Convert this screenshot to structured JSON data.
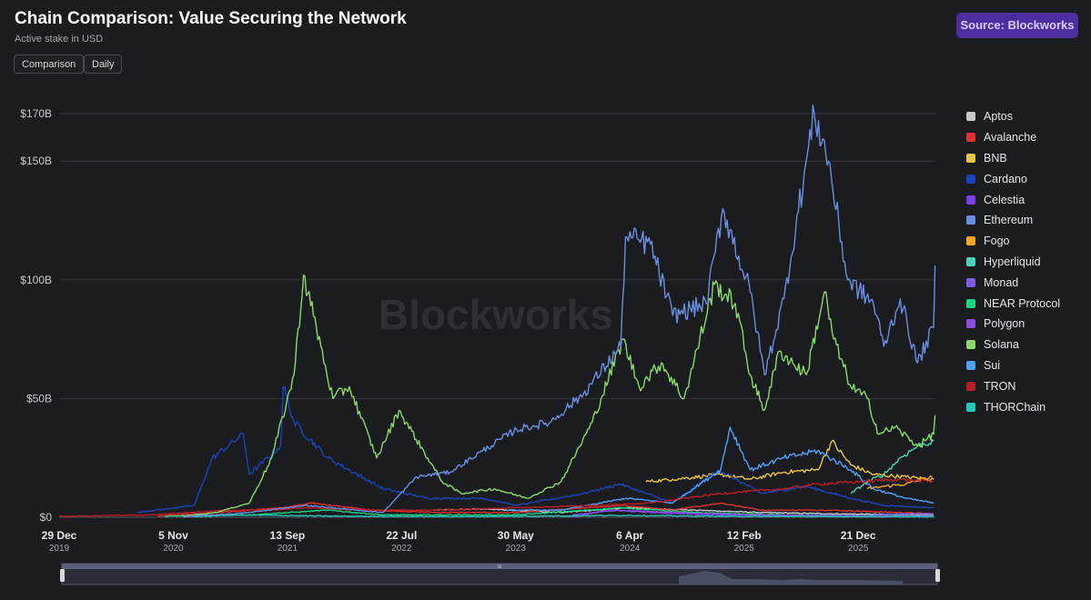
{
  "header": {
    "title": "Chain Comparison: Value Securing the Network",
    "subtitle": "Active stake in USD",
    "source_label": "Source: Blockworks",
    "accent": "#4c2f9e"
  },
  "controls": {
    "comparison_label": "Comparison",
    "daily_label": "Daily"
  },
  "watermark": "Blockworks",
  "chart_data": {
    "type": "line",
    "y_unit": "USD",
    "ylim": [
      0,
      170
    ],
    "y_ticks": [
      {
        "value": 0,
        "label": "$0"
      },
      {
        "value": 50,
        "label": "$50B"
      },
      {
        "value": 100,
        "label": "$100B"
      },
      {
        "value": 150,
        "label": "$150B"
      },
      {
        "value": 170,
        "label": "$170B"
      }
    ],
    "xlim": [
      "2019-12-29",
      "2026-07-20"
    ],
    "x_ticks": [
      {
        "date": "2019-12-29",
        "label": "29 Dec",
        "year": "2019"
      },
      {
        "date": "2020-11-05",
        "label": "5 Nov",
        "year": "2020"
      },
      {
        "date": "2021-09-13",
        "label": "13 Sep",
        "year": "2021"
      },
      {
        "date": "2022-07-22",
        "label": "22 Jul",
        "year": "2022"
      },
      {
        "date": "2023-05-30",
        "label": "30 May",
        "year": "2023"
      },
      {
        "date": "2024-04-06",
        "label": "6 Apr",
        "year": "2024"
      },
      {
        "date": "2025-02-12",
        "label": "12 Feb",
        "year": "2025"
      },
      {
        "date": "2025-12-21",
        "label": "21 Dec",
        "year": "2025"
      }
    ],
    "grid": true,
    "legend_position": "right",
    "series": [
      {
        "name": "Aptos",
        "color": "#c8c8cc",
        "points": [
          [
            "2022-10-18",
            3
          ],
          [
            "2023-03-01",
            3.5
          ],
          [
            "2023-10-01",
            2
          ],
          [
            "2024-04-01",
            4
          ],
          [
            "2024-10-01",
            3
          ],
          [
            "2025-04-01",
            2
          ],
          [
            "2025-10-01",
            1.5
          ],
          [
            "2026-07-15",
            1
          ]
        ]
      },
      {
        "name": "Avalanche",
        "color": "#e0312f",
        "points": [
          [
            "2020-09-23",
            0.5
          ],
          [
            "2021-03-01",
            2
          ],
          [
            "2021-09-01",
            4
          ],
          [
            "2021-11-20",
            6
          ],
          [
            "2022-05-01",
            3
          ],
          [
            "2022-11-01",
            2
          ],
          [
            "2023-06-01",
            2
          ],
          [
            "2024-03-15",
            5
          ],
          [
            "2024-08-01",
            3
          ],
          [
            "2024-12-10",
            6
          ],
          [
            "2025-04-01",
            3
          ],
          [
            "2025-10-01",
            3
          ],
          [
            "2026-07-15",
            1.5
          ]
        ]
      },
      {
        "name": "BNB",
        "color": "#e8c547",
        "points": [
          [
            "2024-05-20",
            15
          ],
          [
            "2024-08-01",
            16
          ],
          [
            "2024-12-10",
            18
          ],
          [
            "2025-03-01",
            16
          ],
          [
            "2025-06-01",
            19
          ],
          [
            "2025-09-01",
            20
          ],
          [
            "2025-10-10",
            32
          ],
          [
            "2025-12-01",
            22
          ],
          [
            "2026-02-01",
            18
          ],
          [
            "2026-05-01",
            17
          ],
          [
            "2026-07-15",
            16
          ]
        ]
      },
      {
        "name": "Cardano",
        "color": "#1a44b8",
        "points": [
          [
            "2020-07-29",
            2
          ],
          [
            "2021-01-01",
            5
          ],
          [
            "2021-02-20",
            25
          ],
          [
            "2021-05-15",
            35
          ],
          [
            "2021-06-01",
            18
          ],
          [
            "2021-08-25",
            30
          ],
          [
            "2021-09-02",
            55
          ],
          [
            "2021-10-01",
            40
          ],
          [
            "2022-01-01",
            25
          ],
          [
            "2022-06-01",
            12
          ],
          [
            "2022-10-01",
            8
          ],
          [
            "2023-03-01",
            8
          ],
          [
            "2023-06-01",
            5
          ],
          [
            "2023-12-01",
            10
          ],
          [
            "2024-03-10",
            14
          ],
          [
            "2024-08-01",
            6
          ],
          [
            "2024-12-05",
            20
          ],
          [
            "2025-04-01",
            10
          ],
          [
            "2025-08-01",
            13
          ],
          [
            "2025-12-01",
            8
          ],
          [
            "2026-03-01",
            5
          ],
          [
            "2026-07-15",
            4
          ]
        ]
      },
      {
        "name": "Celestia",
        "color": "#7b3fe4",
        "points": [
          [
            "2023-10-31",
            0.2
          ],
          [
            "2024-02-10",
            3
          ],
          [
            "2024-06-01",
            2
          ],
          [
            "2024-12-01",
            1
          ],
          [
            "2025-06-01",
            0.5
          ],
          [
            "2026-07-15",
            0.2
          ]
        ]
      },
      {
        "name": "Ethereum",
        "color": "#6b8ee0",
        "points": [
          [
            "2020-12-01",
            0.2
          ],
          [
            "2021-03-01",
            1
          ],
          [
            "2021-06-01",
            2
          ],
          [
            "2021-11-01",
            5
          ],
          [
            "2022-06-01",
            2
          ],
          [
            "2022-09-01",
            17
          ],
          [
            "2022-12-01",
            19
          ],
          [
            "2023-03-01",
            28
          ],
          [
            "2023-06-01",
            37
          ],
          [
            "2023-09-01",
            40
          ],
          [
            "2023-12-01",
            52
          ],
          [
            "2024-03-12",
            72
          ],
          [
            "2024-03-25",
            118
          ],
          [
            "2024-06-01",
            115
          ],
          [
            "2024-08-01",
            85
          ],
          [
            "2024-11-01",
            90
          ],
          [
            "2024-12-16",
            130
          ],
          [
            "2025-03-01",
            95
          ],
          [
            "2025-04-09",
            60
          ],
          [
            "2025-06-01",
            92
          ],
          [
            "2025-08-23",
            170
          ],
          [
            "2025-10-01",
            150
          ],
          [
            "2025-11-22",
            100
          ],
          [
            "2026-02-01",
            90
          ],
          [
            "2026-03-01",
            72
          ],
          [
            "2026-04-15",
            92
          ],
          [
            "2026-06-01",
            65
          ],
          [
            "2026-07-15",
            80
          ],
          [
            "2026-07-19",
            106
          ]
        ]
      },
      {
        "name": "Fogo",
        "color": "#f5a524",
        "points": [
          [
            "2026-01-15",
            12
          ],
          [
            "2026-03-01",
            13
          ],
          [
            "2026-05-01",
            14
          ],
          [
            "2026-07-10",
            17
          ]
        ]
      },
      {
        "name": "Hyperliquid",
        "color": "#4fd1b5",
        "points": [
          [
            "2025-12-01",
            10
          ],
          [
            "2026-01-15",
            15
          ],
          [
            "2026-03-01",
            18
          ],
          [
            "2026-04-15",
            25
          ],
          [
            "2026-06-01",
            30
          ],
          [
            "2026-07-15",
            32
          ]
        ]
      },
      {
        "name": "Monad",
        "color": "#7a5ce6",
        "points": [
          [
            "2026-02-01",
            1
          ],
          [
            "2026-05-01",
            1.5
          ],
          [
            "2026-07-15",
            1.5
          ]
        ]
      },
      {
        "name": "NEAR Protocol",
        "color": "#19d67f",
        "points": [
          [
            "2020-10-13",
            0.5
          ],
          [
            "2021-06-01",
            1
          ],
          [
            "2022-01-01",
            3
          ],
          [
            "2022-06-01",
            1
          ],
          [
            "2023-06-01",
            1
          ],
          [
            "2024-03-15",
            4
          ],
          [
            "2024-10-01",
            2
          ],
          [
            "2025-06-01",
            1
          ],
          [
            "2026-07-15",
            0.5
          ]
        ]
      },
      {
        "name": "Polygon",
        "color": "#8a4fe0",
        "points": [
          [
            "2023-11-01",
            1
          ],
          [
            "2024-03-01",
            3
          ],
          [
            "2024-08-01",
            2
          ],
          [
            "2025-03-01",
            1
          ],
          [
            "2026-07-15",
            0.5
          ]
        ]
      },
      {
        "name": "Solana",
        "color": "#8bd96a",
        "points": [
          [
            "2020-12-01",
            0.5
          ],
          [
            "2021-03-01",
            2
          ],
          [
            "2021-06-01",
            6
          ],
          [
            "2021-08-01",
            25
          ],
          [
            "2021-10-01",
            60
          ],
          [
            "2021-10-27",
            102
          ],
          [
            "2021-12-01",
            80
          ],
          [
            "2022-01-15",
            50
          ],
          [
            "2022-03-01",
            55
          ],
          [
            "2022-05-15",
            25
          ],
          [
            "2022-07-15",
            45
          ],
          [
            "2022-10-01",
            25
          ],
          [
            "2022-11-10",
            15
          ],
          [
            "2023-01-01",
            10
          ],
          [
            "2023-04-01",
            12
          ],
          [
            "2023-07-01",
            8
          ],
          [
            "2023-10-01",
            15
          ],
          [
            "2023-12-25",
            40
          ],
          [
            "2024-03-18",
            75
          ],
          [
            "2024-05-01",
            55
          ],
          [
            "2024-07-01",
            65
          ],
          [
            "2024-09-01",
            50
          ],
          [
            "2024-11-23",
            98
          ],
          [
            "2025-01-19",
            90
          ],
          [
            "2025-03-01",
            60
          ],
          [
            "2025-04-08",
            45
          ],
          [
            "2025-05-20",
            70
          ],
          [
            "2025-08-01",
            60
          ],
          [
            "2025-09-20",
            95
          ],
          [
            "2025-10-15",
            75
          ],
          [
            "2025-12-01",
            55
          ],
          [
            "2026-01-15",
            50
          ],
          [
            "2026-02-15",
            35
          ],
          [
            "2026-04-01",
            38
          ],
          [
            "2026-06-01",
            30
          ],
          [
            "2026-07-15",
            35
          ],
          [
            "2026-07-19",
            43
          ]
        ]
      },
      {
        "name": "Sui",
        "color": "#4ea1f3",
        "points": [
          [
            "2023-05-03",
            3
          ],
          [
            "2023-10-01",
            3
          ],
          [
            "2024-03-28",
            8
          ],
          [
            "2024-08-01",
            6
          ],
          [
            "2024-12-10",
            20
          ],
          [
            "2025-01-05",
            38
          ],
          [
            "2025-03-01",
            20
          ],
          [
            "2025-06-01",
            25
          ],
          [
            "2025-09-01",
            28
          ],
          [
            "2025-12-01",
            20
          ],
          [
            "2026-02-01",
            12
          ],
          [
            "2026-05-01",
            8
          ],
          [
            "2026-07-15",
            6
          ]
        ]
      },
      {
        "name": "TRON",
        "color": "#b81e24",
        "points": [
          [
            "2019-12-29",
            0.5
          ],
          [
            "2020-03-01",
            0.5
          ],
          [
            "2020-09-01",
            1
          ],
          [
            "2021-04-01",
            3
          ],
          [
            "2021-08-01",
            3
          ],
          [
            "2021-11-01",
            4
          ],
          [
            "2022-05-01",
            3
          ],
          [
            "2022-11-01",
            3
          ],
          [
            "2023-06-01",
            4
          ],
          [
            "2024-01-01",
            5
          ],
          [
            "2024-06-01",
            6
          ],
          [
            "2024-12-10",
            10
          ],
          [
            "2025-06-01",
            12
          ],
          [
            "2025-09-01",
            14
          ],
          [
            "2026-01-01",
            15
          ],
          [
            "2026-04-01",
            16
          ],
          [
            "2026-07-15",
            15
          ]
        ]
      },
      {
        "name": "THORChain",
        "color": "#22c8b8",
        "points": [
          [
            "2021-01-01",
            0.3
          ],
          [
            "2021-05-01",
            1
          ],
          [
            "2022-01-01",
            0.5
          ],
          [
            "2023-01-01",
            0.3
          ],
          [
            "2024-04-01",
            0.8
          ],
          [
            "2025-01-01",
            0.4
          ],
          [
            "2026-07-15",
            0.2
          ]
        ]
      }
    ]
  }
}
